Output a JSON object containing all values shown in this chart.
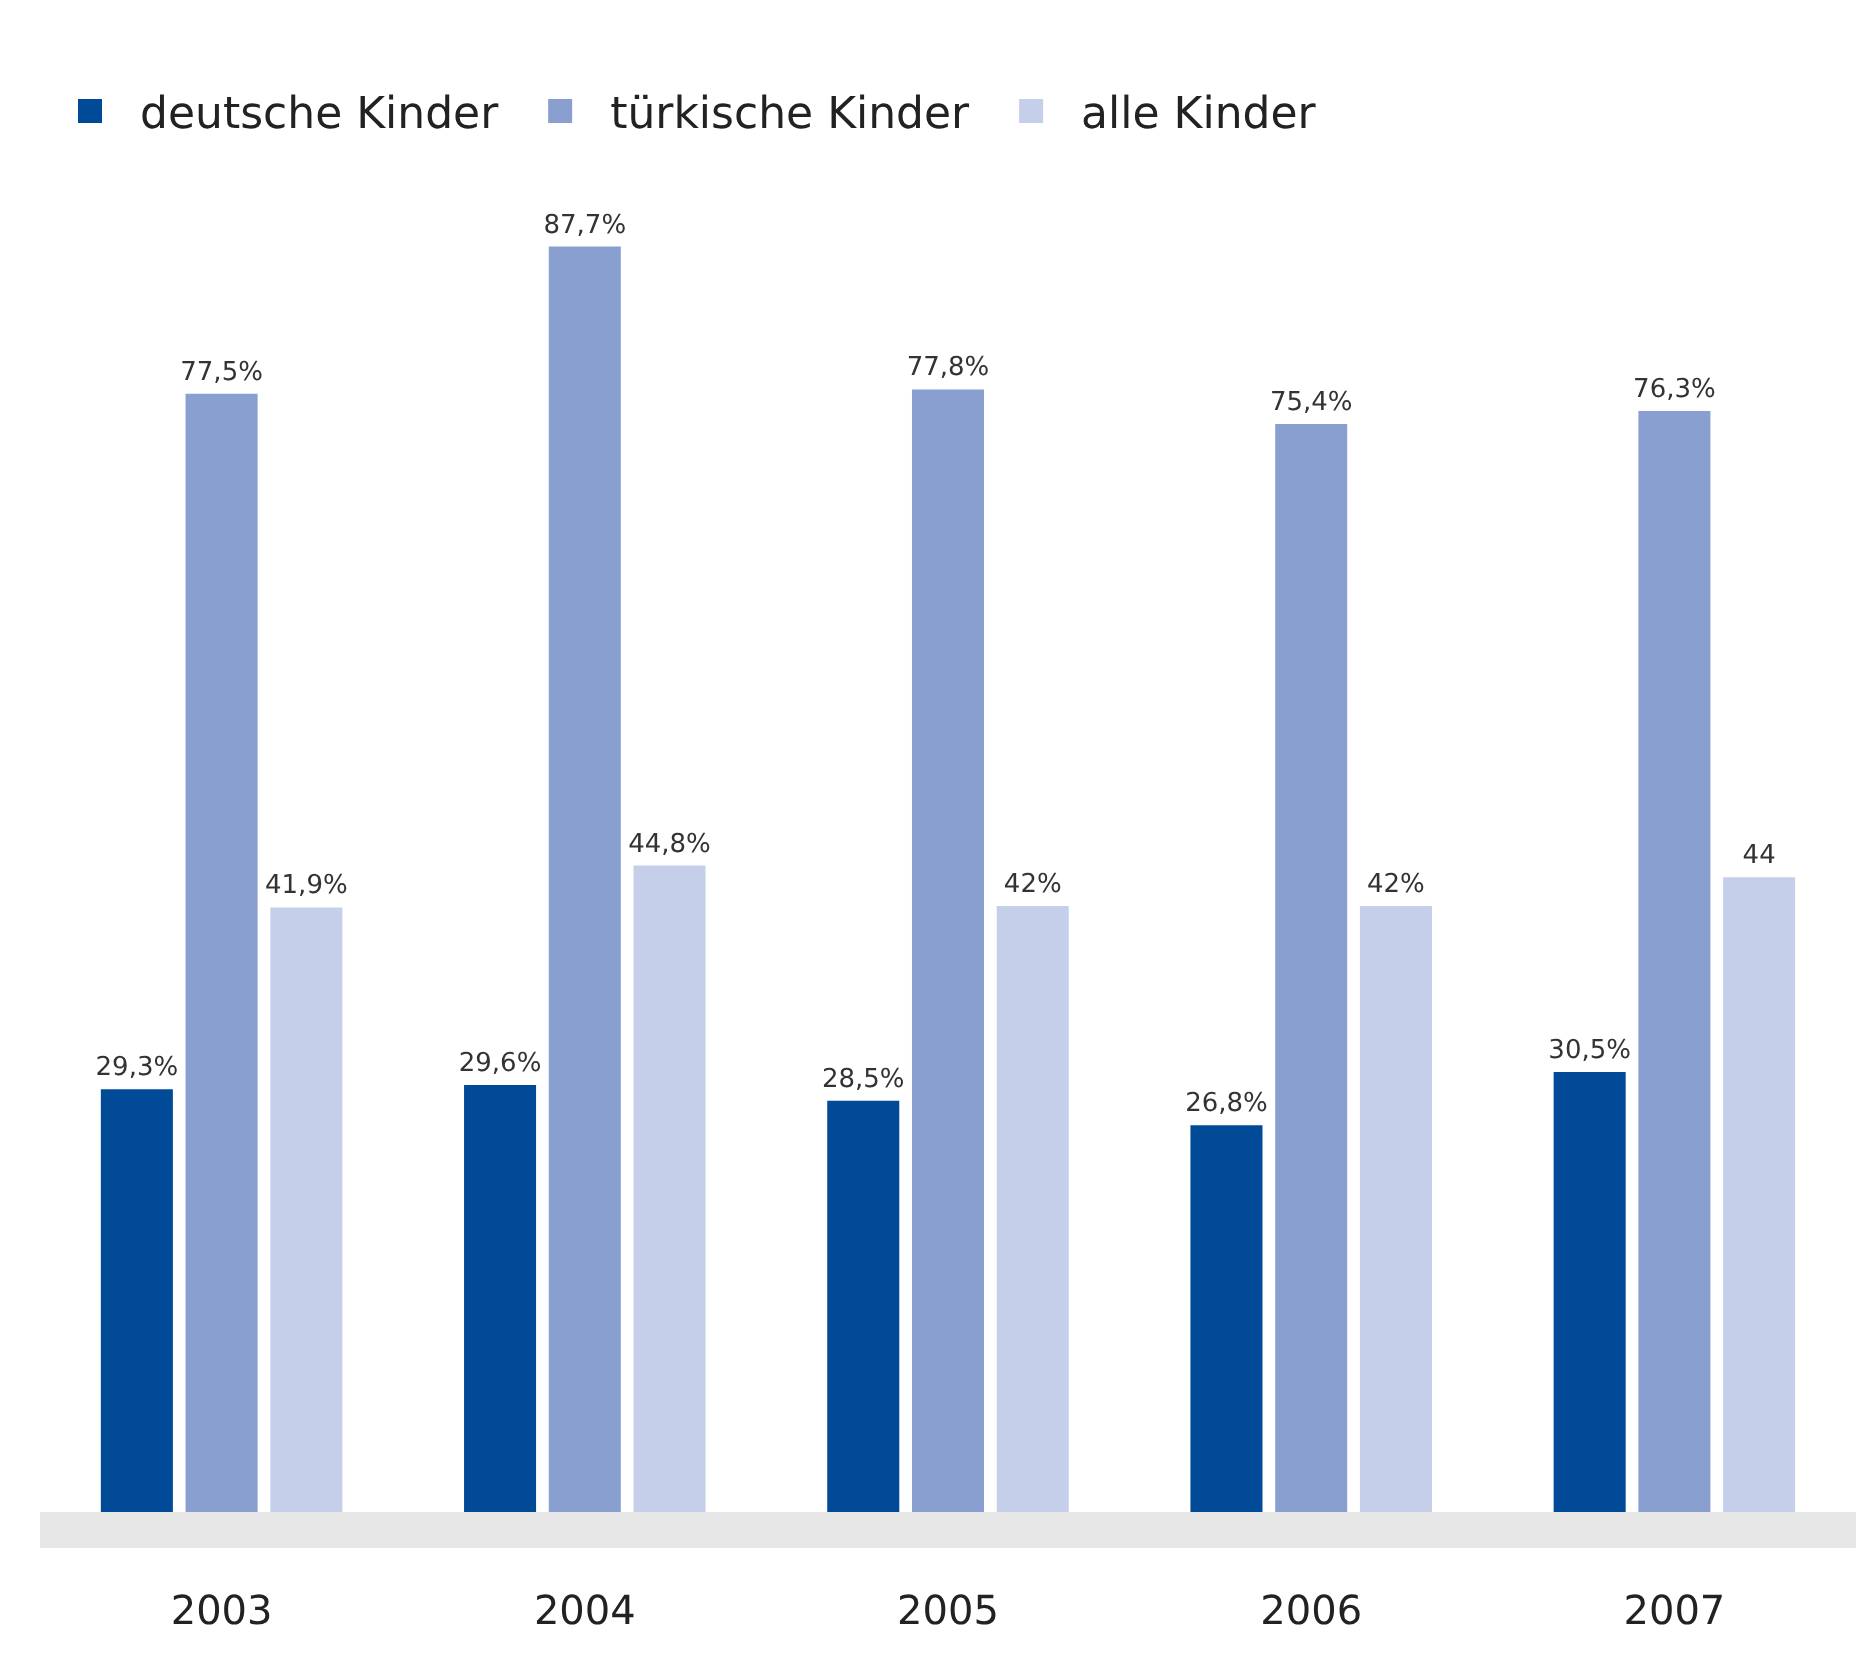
{
  "chart_data": {
    "type": "bar",
    "categories": [
      "2003",
      "2004",
      "2005",
      "2006",
      "2007"
    ],
    "series": [
      {
        "name": "deutsche Kinder",
        "color": "#004a98",
        "values": [
          29.3,
          29.6,
          28.5,
          26.8,
          30.5
        ],
        "value_labels": [
          "29,3%",
          "29,6%",
          "28,5%",
          "26,8%",
          "30,5%"
        ]
      },
      {
        "name": "türkische Kinder",
        "color": "#889fcf",
        "values": [
          77.5,
          87.7,
          77.8,
          75.4,
          76.3
        ],
        "value_labels": [
          "77,5%",
          "87,7%",
          "77,8%",
          "75,4%",
          "76,3%"
        ]
      },
      {
        "name": "alle Kinder",
        "color": "#c5cfe9",
        "values": [
          41.9,
          44.8,
          42,
          42,
          44
        ],
        "value_labels": [
          "41,9%",
          "44,8%",
          "42%",
          "42%",
          "44"
        ]
      }
    ],
    "legend": "top left",
    "grid": false
  }
}
